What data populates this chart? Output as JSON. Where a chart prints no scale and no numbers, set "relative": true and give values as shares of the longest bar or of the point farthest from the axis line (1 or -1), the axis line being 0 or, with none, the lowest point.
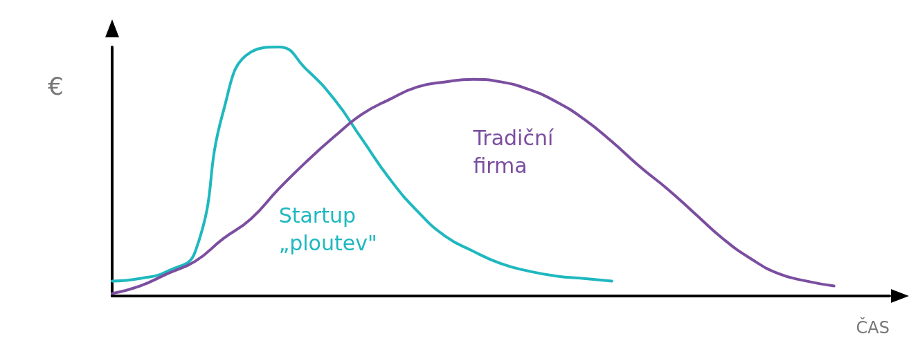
{
  "chart_data": {
    "type": "line",
    "relative": true,
    "xlabel": "ČAS",
    "ylabel": "€",
    "categories": [
      null,
      null,
      null,
      null,
      null,
      null,
      null,
      null,
      null,
      null,
      null,
      null,
      null,
      null,
      null,
      null,
      null,
      null,
      null,
      null,
      null,
      null,
      null,
      null,
      null,
      null,
      null,
      null,
      null
    ],
    "series": [
      {
        "name": "Startup „ploutev\"",
        "color": "#1fb8bf",
        "values": [
          0.06,
          0.07,
          0.1,
          0.18,
          0.74,
          0.98,
          1.0,
          0.91,
          0.79,
          0.63,
          0.47,
          0.34,
          0.24,
          0.18,
          0.13,
          0.1,
          0.08,
          0.07,
          0.06,
          null,
          null,
          null,
          null,
          null,
          null,
          null,
          null,
          null,
          null
        ]
      },
      {
        "name": "Tradiční firma",
        "color": "#7b4ea0",
        "values": [
          0.01,
          0.04,
          0.09,
          0.14,
          0.23,
          0.31,
          0.43,
          0.54,
          0.64,
          0.73,
          0.79,
          0.84,
          0.86,
          0.87,
          0.86,
          0.83,
          0.78,
          0.71,
          0.62,
          0.52,
          0.43,
          0.33,
          0.23,
          0.15,
          0.09,
          0.06,
          0.04,
          null,
          null
        ]
      }
    ],
    "legend": false,
    "grid": false,
    "marker": "none",
    "line_style": "solid"
  }
}
